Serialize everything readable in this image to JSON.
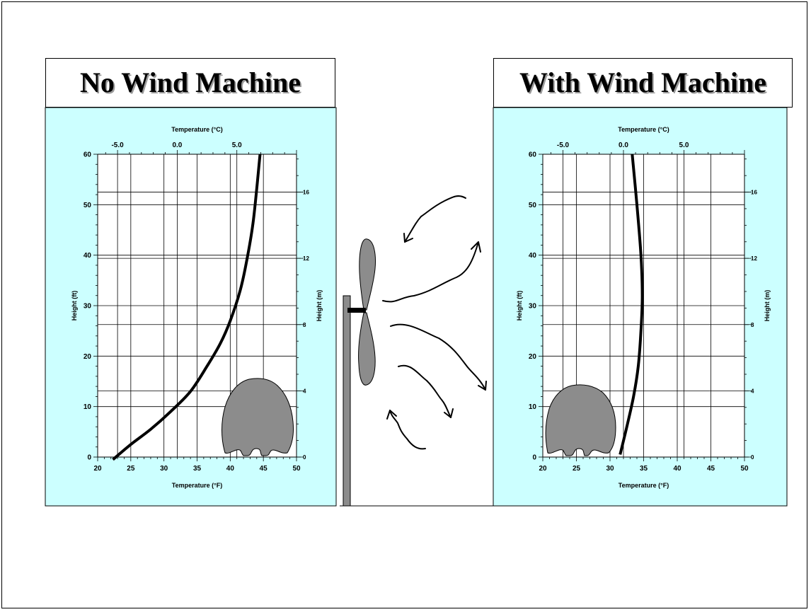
{
  "panels": {
    "left_title": "No Wind Machine",
    "right_title": "With Wind Machine"
  },
  "chart_data": [
    {
      "type": "line",
      "panel_title": "No Wind Machine",
      "title": "",
      "xlabel": "Temperature (°F)",
      "ylabel": "Height (ft)",
      "x2label": "Temperature (°C)",
      "y2label": "Height (m)",
      "xlim": [
        20,
        50
      ],
      "ylim": [
        0,
        60
      ],
      "xticks": [
        "20",
        "25",
        "30",
        "35",
        "40",
        "45",
        "50"
      ],
      "yticks": [
        "0",
        "10",
        "20",
        "30",
        "40",
        "50",
        "60"
      ],
      "x2ticks": [
        "-5.0",
        "0.0",
        "5.0"
      ],
      "y2ticks": [
        "0",
        "4",
        "8",
        "12",
        "16"
      ],
      "grid": true,
      "series": [
        {
          "x": [
            22.3,
            25.0,
            28.0,
            31.0,
            34.0,
            36.5,
            38.5,
            40.0,
            41.5,
            42.5,
            43.5,
            44.5
          ],
          "y": [
            -0.5,
            2.5,
            5.5,
            9.0,
            13.0,
            18.0,
            22.5,
            27.0,
            33.0,
            39.0,
            47.0,
            60.0
          ]
        }
      ]
    },
    {
      "type": "line",
      "panel_title": "With Wind Machine",
      "title": "",
      "xlabel": "Temperature (°F)",
      "ylabel": "Height (ft)",
      "x2label": "Temperature (°C)",
      "y2label": "Height (m)",
      "xlim": [
        20,
        50
      ],
      "ylim": [
        0,
        60
      ],
      "xticks": [
        "20",
        "25",
        "30",
        "35",
        "40",
        "45",
        "50"
      ],
      "yticks": [
        "0",
        "10",
        "20",
        "30",
        "40",
        "50",
        "60"
      ],
      "x2ticks": [
        "-5.0",
        "0.0",
        "5.0"
      ],
      "y2ticks": [
        "0",
        "4",
        "8",
        "12",
        "16"
      ],
      "grid": true,
      "series": [
        {
          "x": [
            31.5,
            32.5,
            33.5,
            34.2,
            34.6,
            34.8,
            34.6,
            34.0,
            33.3
          ],
          "y": [
            0.5,
            6.0,
            12.0,
            18.0,
            25.0,
            32.0,
            40.0,
            50.0,
            60.0
          ]
        }
      ]
    }
  ]
}
